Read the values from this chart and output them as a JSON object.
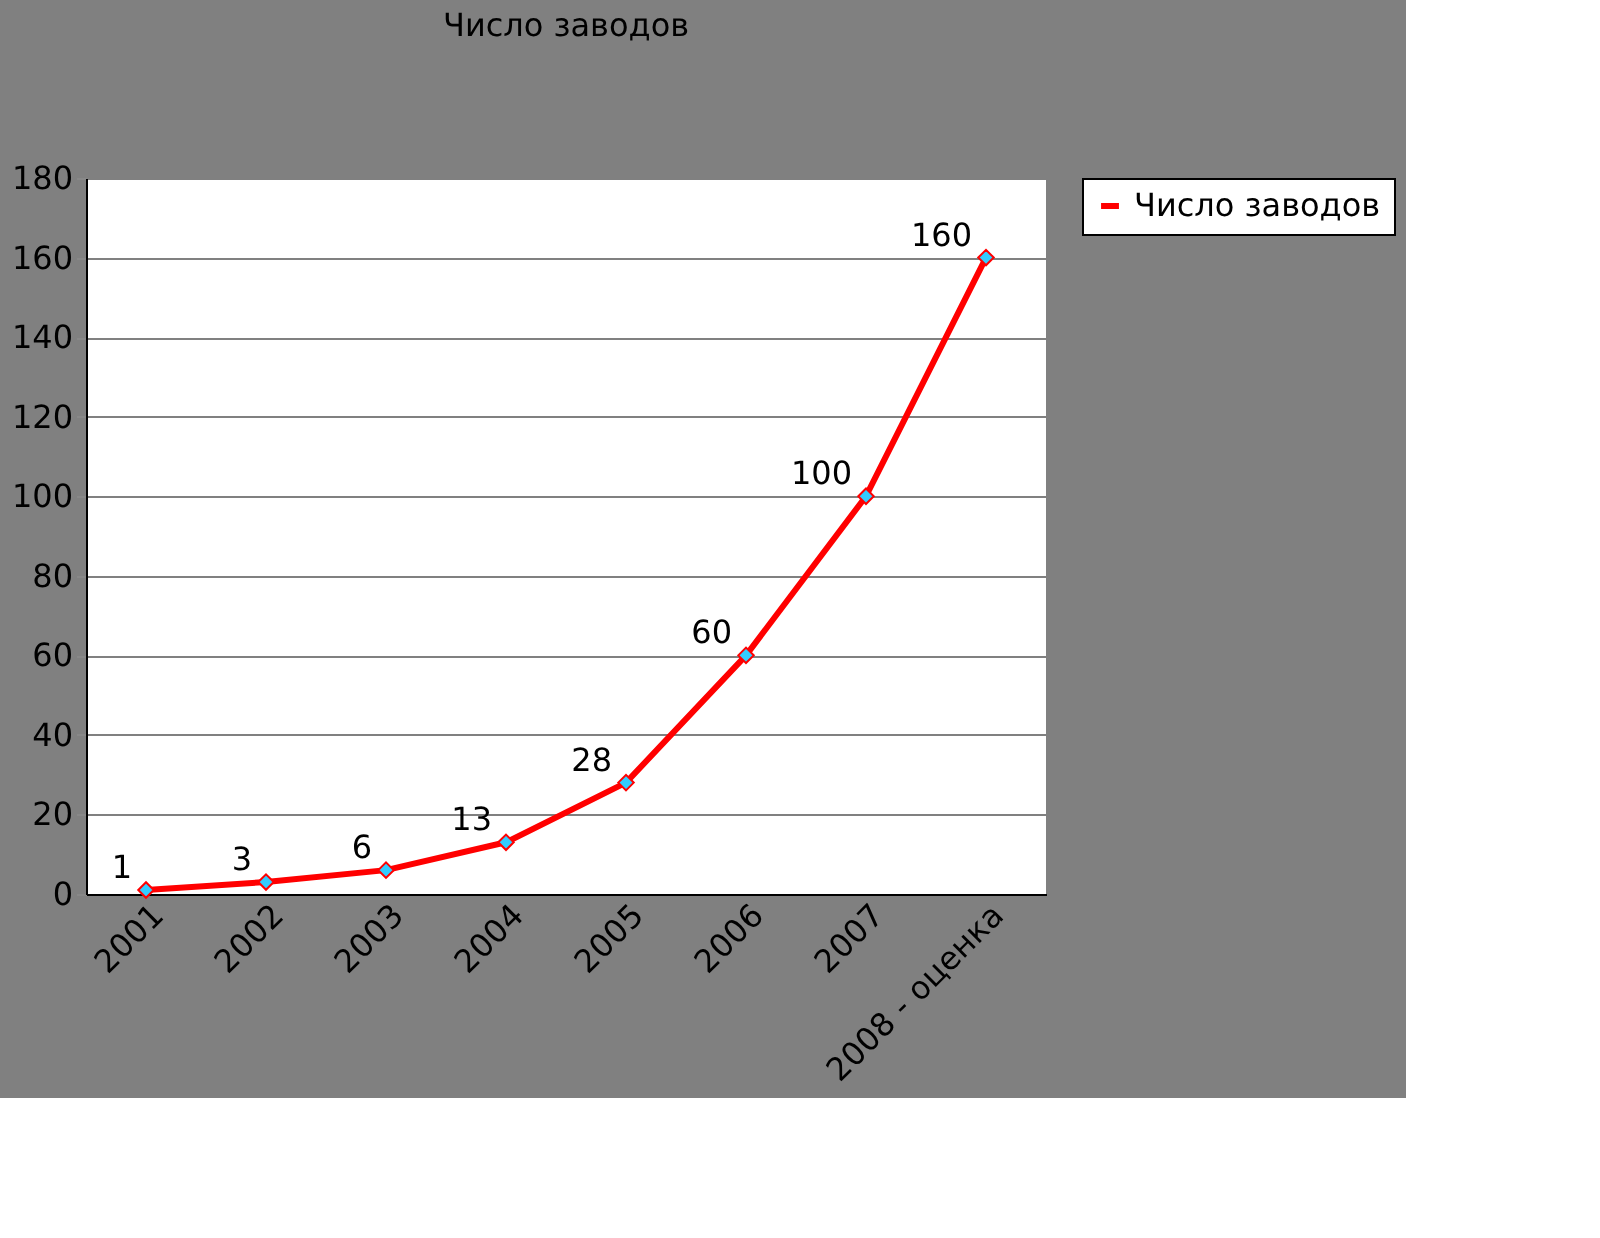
{
  "chart_data": {
    "type": "line",
    "title": "Число заводов",
    "categories": [
      "2001",
      "2002",
      "2003",
      "2004",
      "2005",
      "2006",
      "2007",
      "2008 - оценка"
    ],
    "series": [
      {
        "name": "Число заводов",
        "color": "#ff0000",
        "values": [
          1,
          3,
          6,
          13,
          28,
          60,
          100,
          160
        ]
      }
    ],
    "ylim": [
      0,
      180
    ],
    "yticks": [
      0,
      20,
      40,
      60,
      80,
      100,
      120,
      140,
      160,
      180
    ],
    "grid": "y",
    "legend": "right",
    "marker": "diamond",
    "line_style": "solid",
    "data_labels": true
  }
}
